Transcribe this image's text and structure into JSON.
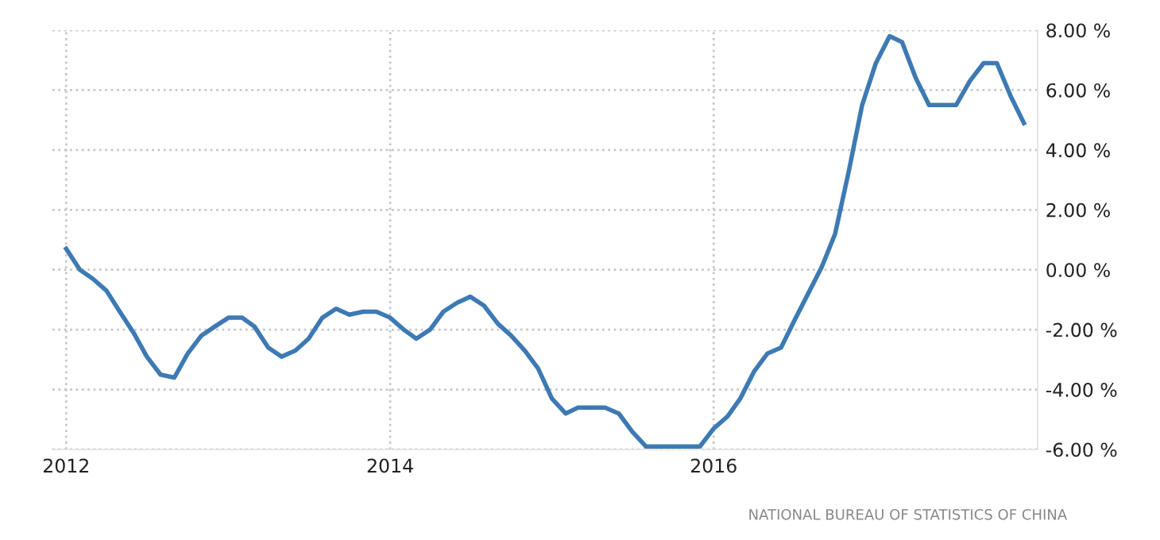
{
  "chart_data": {
    "type": "line",
    "x": [
      "2012-01",
      "2012-02",
      "2012-03",
      "2012-04",
      "2012-05",
      "2012-06",
      "2012-07",
      "2012-08",
      "2012-09",
      "2012-10",
      "2012-11",
      "2012-12",
      "2013-01",
      "2013-02",
      "2013-03",
      "2013-04",
      "2013-05",
      "2013-06",
      "2013-07",
      "2013-08",
      "2013-09",
      "2013-10",
      "2013-11",
      "2013-12",
      "2014-01",
      "2014-02",
      "2014-03",
      "2014-04",
      "2014-05",
      "2014-06",
      "2014-07",
      "2014-08",
      "2014-09",
      "2014-10",
      "2014-11",
      "2014-12",
      "2015-01",
      "2015-02",
      "2015-03",
      "2015-04",
      "2015-05",
      "2015-06",
      "2015-07",
      "2015-08",
      "2015-09",
      "2015-10",
      "2015-11",
      "2015-12",
      "2016-01",
      "2016-02",
      "2016-03",
      "2016-04",
      "2016-05",
      "2016-06",
      "2016-07",
      "2016-08",
      "2016-09",
      "2016-10",
      "2016-11",
      "2016-12",
      "2017-01",
      "2017-02",
      "2017-03",
      "2017-04",
      "2017-05",
      "2017-06",
      "2017-07",
      "2017-08",
      "2017-09",
      "2017-10",
      "2017-11",
      "2017-12"
    ],
    "series": [
      {
        "color": "#3d7ab4",
        "values": [
          0.7,
          0.0,
          -0.3,
          -0.7,
          -1.4,
          -2.1,
          -2.9,
          -3.5,
          -3.6,
          -2.8,
          -2.2,
          -1.9,
          -1.6,
          -1.6,
          -1.9,
          -2.6,
          -2.9,
          -2.7,
          -2.3,
          -1.6,
          -1.3,
          -1.5,
          -1.4,
          -1.4,
          -1.6,
          -2.0,
          -2.3,
          -2.0,
          -1.4,
          -1.1,
          -0.9,
          -1.2,
          -1.8,
          -2.2,
          -2.7,
          -3.3,
          -4.3,
          -4.8,
          -4.6,
          -4.6,
          -4.6,
          -4.8,
          -5.4,
          -5.9,
          -5.9,
          -5.9,
          -5.9,
          -5.9,
          -5.3,
          -4.9,
          -4.3,
          -3.4,
          -2.8,
          -2.6,
          -1.7,
          -0.8,
          0.1,
          1.2,
          3.3,
          5.5,
          6.9,
          7.8,
          7.6,
          6.4,
          5.5,
          5.5,
          5.5,
          6.3,
          6.9,
          6.9,
          5.8,
          4.9
        ]
      }
    ],
    "xlim": [
      "2011-12",
      "2018-01"
    ],
    "xticks": [
      "2012",
      "2014",
      "2016"
    ],
    "ylim": [
      -6,
      8
    ],
    "yticks": [
      {
        "value": -6,
        "label": "-6.00 %"
      },
      {
        "value": -4,
        "label": "-4.00 %"
      },
      {
        "value": -2,
        "label": "-2.00 %"
      },
      {
        "value": 0,
        "label": "0.00 %"
      },
      {
        "value": 2,
        "label": "2.00 %"
      },
      {
        "value": 4,
        "label": "4.00 %"
      },
      {
        "value": 6,
        "label": "6.00 %"
      },
      {
        "value": 8,
        "label": "8.00 %"
      }
    ],
    "grid": true,
    "line_style": "solid",
    "annotations": [
      "NATIONAL BUREAU OF STATISTICS OF CHINA"
    ]
  }
}
